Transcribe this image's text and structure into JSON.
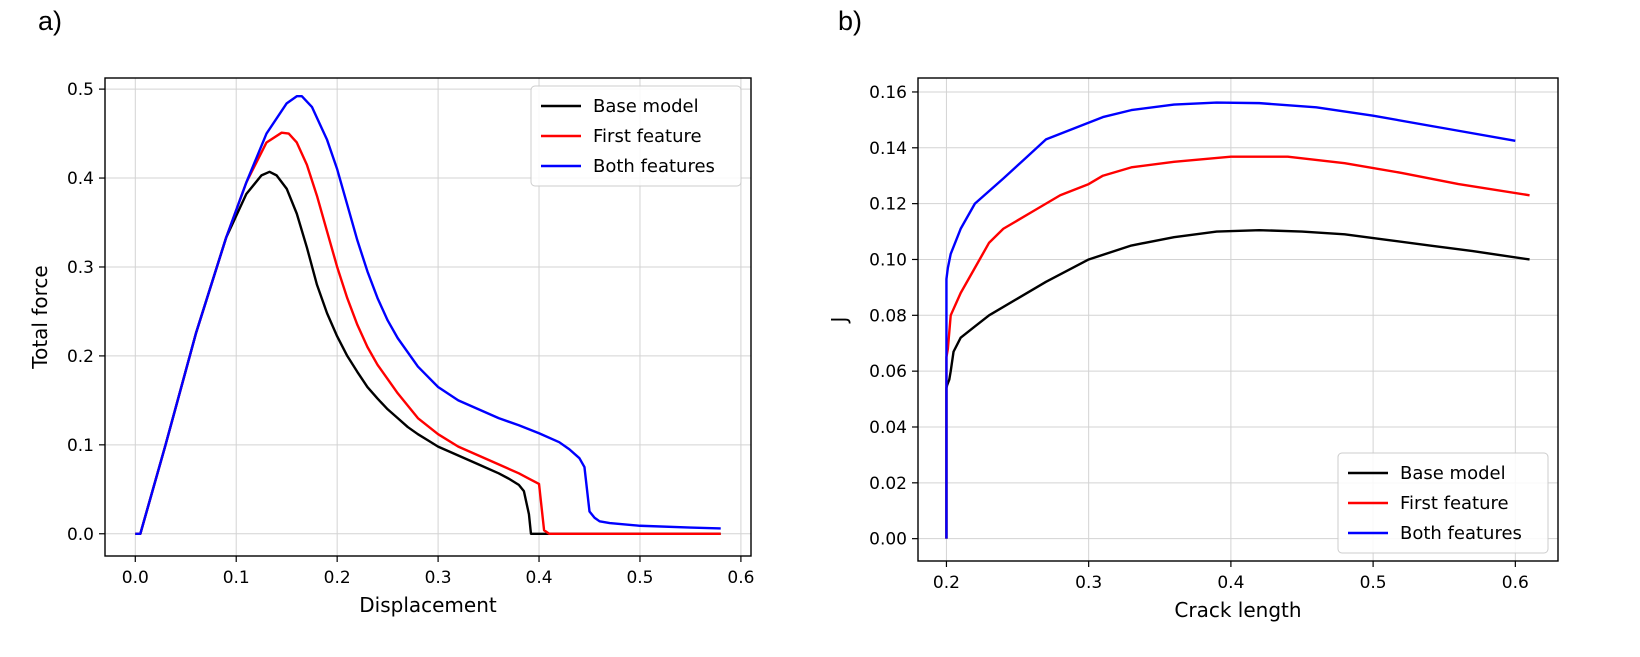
{
  "colors": {
    "Base model": "#000000",
    "First feature": "#ff0000",
    "Both features": "#0000ff"
  },
  "chart_data": [
    {
      "panel_label": "a)",
      "type": "line",
      "title": "",
      "xlabel": "Displacement",
      "ylabel": "Total force",
      "xlim": [
        -0.03,
        0.61
      ],
      "ylim": [
        -0.025,
        0.5125
      ],
      "xticks": [
        0.0,
        0.1,
        0.2,
        0.3,
        0.4,
        0.5,
        0.6
      ],
      "xtick_labels": [
        "0.0",
        "0.1",
        "0.2",
        "0.3",
        "0.4",
        "0.5",
        "0.6"
      ],
      "yticks": [
        0.0,
        0.1,
        0.2,
        0.3,
        0.4,
        0.5
      ],
      "ytick_labels": [
        "0.0",
        "0.1",
        "0.2",
        "0.3",
        "0.4",
        "0.5"
      ],
      "grid": true,
      "legend_position": "top-right",
      "series": [
        {
          "name": "Base model",
          "color": "#000000",
          "x": [
            0.0,
            0.005,
            0.03,
            0.06,
            0.09,
            0.11,
            0.125,
            0.133,
            0.14,
            0.15,
            0.16,
            0.17,
            0.18,
            0.19,
            0.2,
            0.21,
            0.22,
            0.23,
            0.24,
            0.25,
            0.26,
            0.27,
            0.28,
            0.29,
            0.3,
            0.32,
            0.34,
            0.36,
            0.37,
            0.38,
            0.385,
            0.39,
            0.392,
            0.395,
            0.58
          ],
          "y": [
            0.0,
            0.0,
            0.1,
            0.225,
            0.333,
            0.382,
            0.403,
            0.407,
            0.403,
            0.388,
            0.36,
            0.322,
            0.28,
            0.248,
            0.222,
            0.2,
            0.182,
            0.165,
            0.152,
            0.14,
            0.13,
            0.12,
            0.112,
            0.105,
            0.098,
            0.088,
            0.078,
            0.068,
            0.062,
            0.055,
            0.048,
            0.022,
            0.0,
            0.0,
            0.0
          ]
        },
        {
          "name": "First feature",
          "color": "#ff0000",
          "x": [
            0.0,
            0.005,
            0.03,
            0.06,
            0.09,
            0.11,
            0.13,
            0.145,
            0.152,
            0.16,
            0.17,
            0.18,
            0.19,
            0.2,
            0.21,
            0.22,
            0.23,
            0.24,
            0.26,
            0.28,
            0.3,
            0.32,
            0.34,
            0.36,
            0.38,
            0.39,
            0.4,
            0.405,
            0.41,
            0.58
          ],
          "y": [
            0.0,
            0.0,
            0.1,
            0.225,
            0.333,
            0.395,
            0.44,
            0.451,
            0.45,
            0.44,
            0.415,
            0.38,
            0.34,
            0.3,
            0.265,
            0.235,
            0.21,
            0.19,
            0.158,
            0.13,
            0.112,
            0.098,
            0.088,
            0.078,
            0.068,
            0.062,
            0.056,
            0.004,
            0.0,
            0.0
          ]
        },
        {
          "name": "Both features",
          "color": "#0000ff",
          "x": [
            0.0,
            0.005,
            0.03,
            0.06,
            0.09,
            0.11,
            0.13,
            0.15,
            0.16,
            0.165,
            0.175,
            0.19,
            0.2,
            0.21,
            0.22,
            0.23,
            0.24,
            0.25,
            0.26,
            0.28,
            0.3,
            0.32,
            0.34,
            0.36,
            0.38,
            0.4,
            0.42,
            0.43,
            0.44,
            0.445,
            0.45,
            0.455,
            0.46,
            0.47,
            0.5,
            0.55,
            0.58
          ],
          "y": [
            0.0,
            0.0,
            0.1,
            0.225,
            0.333,
            0.395,
            0.45,
            0.484,
            0.492,
            0.492,
            0.48,
            0.443,
            0.41,
            0.37,
            0.33,
            0.295,
            0.265,
            0.24,
            0.22,
            0.188,
            0.165,
            0.15,
            0.14,
            0.13,
            0.122,
            0.113,
            0.103,
            0.095,
            0.085,
            0.075,
            0.025,
            0.018,
            0.014,
            0.012,
            0.009,
            0.007,
            0.006
          ]
        }
      ]
    },
    {
      "panel_label": "b)",
      "type": "line",
      "title": "",
      "xlabel": "Crack length",
      "ylabel": "J",
      "xlim": [
        0.18,
        0.63
      ],
      "ylim": [
        -0.008,
        0.165
      ],
      "xticks": [
        0.2,
        0.3,
        0.4,
        0.5,
        0.6
      ],
      "xtick_labels": [
        "0.2",
        "0.3",
        "0.4",
        "0.5",
        "0.6"
      ],
      "yticks": [
        0.0,
        0.02,
        0.04,
        0.06,
        0.08,
        0.1,
        0.12,
        0.14,
        0.16
      ],
      "ytick_labels": [
        "0.00",
        "0.02",
        "0.04",
        "0.06",
        "0.08",
        "0.10",
        "0.12",
        "0.14",
        "0.16"
      ],
      "grid": true,
      "legend_position": "bottom-right",
      "series": [
        {
          "name": "Base model",
          "color": "#000000",
          "x": [
            0.2,
            0.2,
            0.2,
            0.2005,
            0.202,
            0.203,
            0.205,
            0.21,
            0.22,
            0.23,
            0.25,
            0.27,
            0.3,
            0.33,
            0.36,
            0.39,
            0.42,
            0.45,
            0.48,
            0.51,
            0.54,
            0.57,
            0.61
          ],
          "y": [
            0.0,
            0.03,
            0.054,
            0.055,
            0.057,
            0.06,
            0.067,
            0.072,
            0.076,
            0.08,
            0.086,
            0.092,
            0.1,
            0.105,
            0.108,
            0.11,
            0.1105,
            0.11,
            0.109,
            0.107,
            0.105,
            0.103,
            0.1
          ]
        },
        {
          "name": "First feature",
          "color": "#ff0000",
          "x": [
            0.2,
            0.2,
            0.2,
            0.201,
            0.203,
            0.21,
            0.22,
            0.23,
            0.24,
            0.26,
            0.28,
            0.3,
            0.31,
            0.33,
            0.36,
            0.4,
            0.44,
            0.48,
            0.52,
            0.56,
            0.61
          ],
          "y": [
            0.0,
            0.05,
            0.065,
            0.068,
            0.08,
            0.088,
            0.097,
            0.106,
            0.111,
            0.117,
            0.123,
            0.127,
            0.13,
            0.133,
            0.135,
            0.1368,
            0.1368,
            0.1345,
            0.131,
            0.127,
            0.123
          ]
        },
        {
          "name": "Both features",
          "color": "#0000ff",
          "x": [
            0.2,
            0.2,
            0.2,
            0.201,
            0.203,
            0.21,
            0.22,
            0.24,
            0.255,
            0.27,
            0.29,
            0.31,
            0.33,
            0.36,
            0.39,
            0.42,
            0.46,
            0.5,
            0.55,
            0.6
          ],
          "y": [
            0.0,
            0.07,
            0.093,
            0.097,
            0.102,
            0.111,
            0.12,
            0.129,
            0.136,
            0.143,
            0.147,
            0.151,
            0.1535,
            0.1555,
            0.1562,
            0.156,
            0.1545,
            0.1515,
            0.147,
            0.1425
          ]
        }
      ]
    }
  ]
}
